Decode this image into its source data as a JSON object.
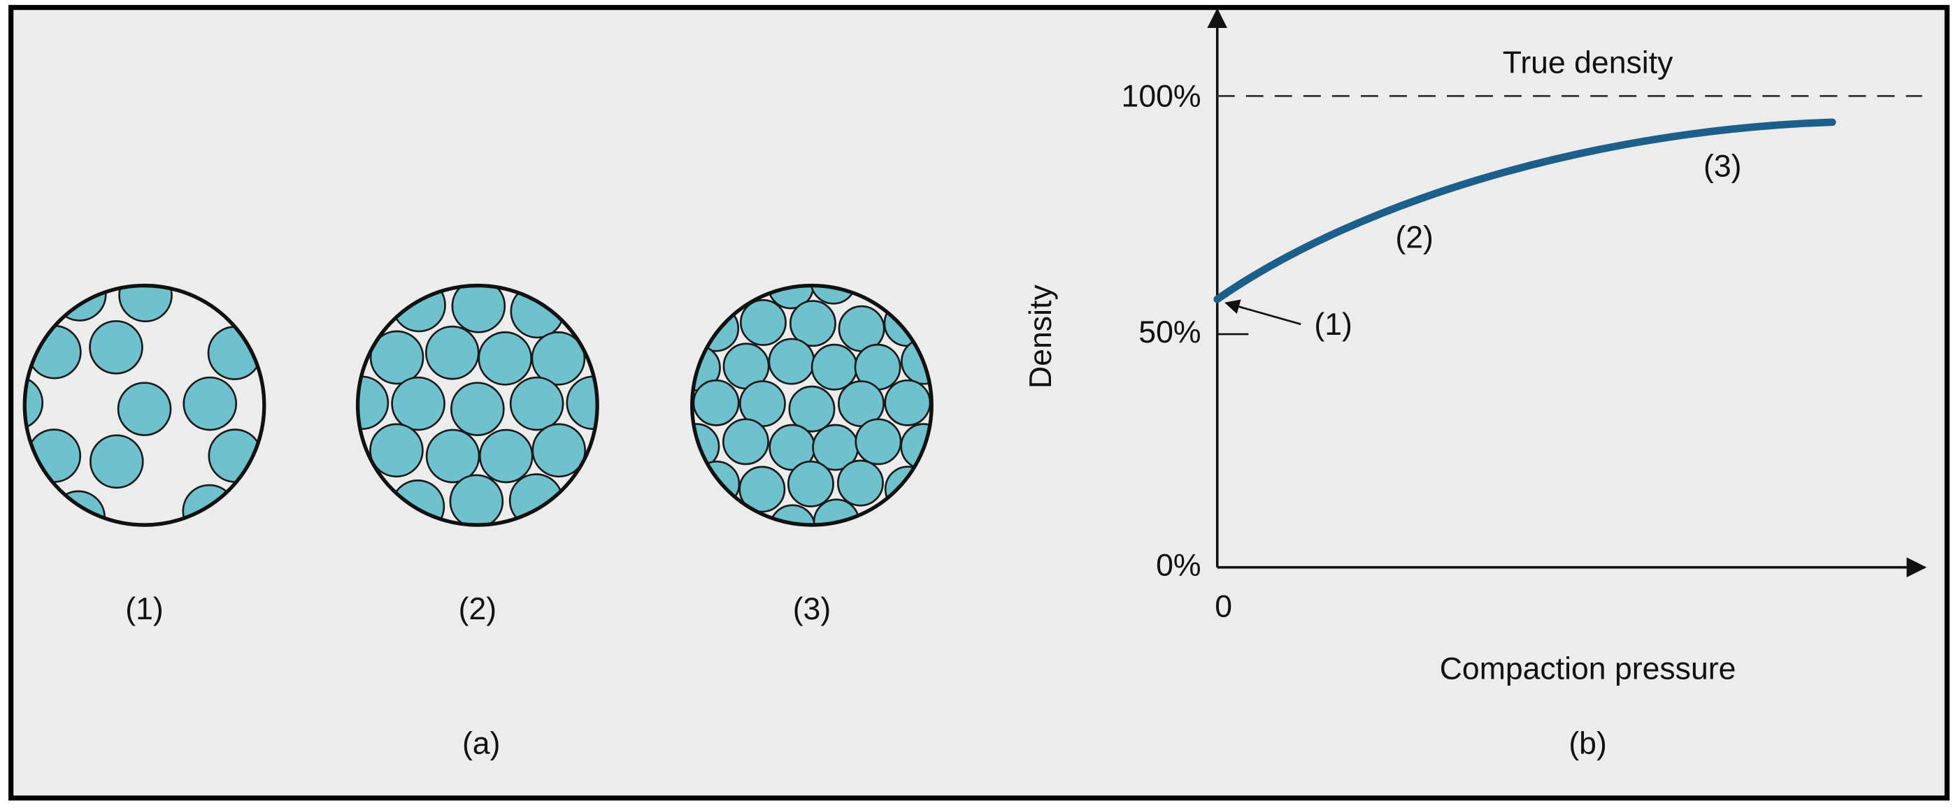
{
  "panel_a": {
    "diagrams": [
      {
        "label": "(1)"
      },
      {
        "label": "(2)"
      },
      {
        "label": "(3)"
      }
    ],
    "caption": "(a)"
  },
  "panel_b": {
    "y_axis_label": "Density",
    "x_axis_label": "Compaction pressure",
    "y_ticks": [
      "0%",
      "50%",
      "100%"
    ],
    "x_origin_label": "0",
    "reference_line_label": "True density",
    "curve_stage_labels": [
      "(1)",
      "(2)",
      "(3)"
    ],
    "caption": "(b)"
  }
}
